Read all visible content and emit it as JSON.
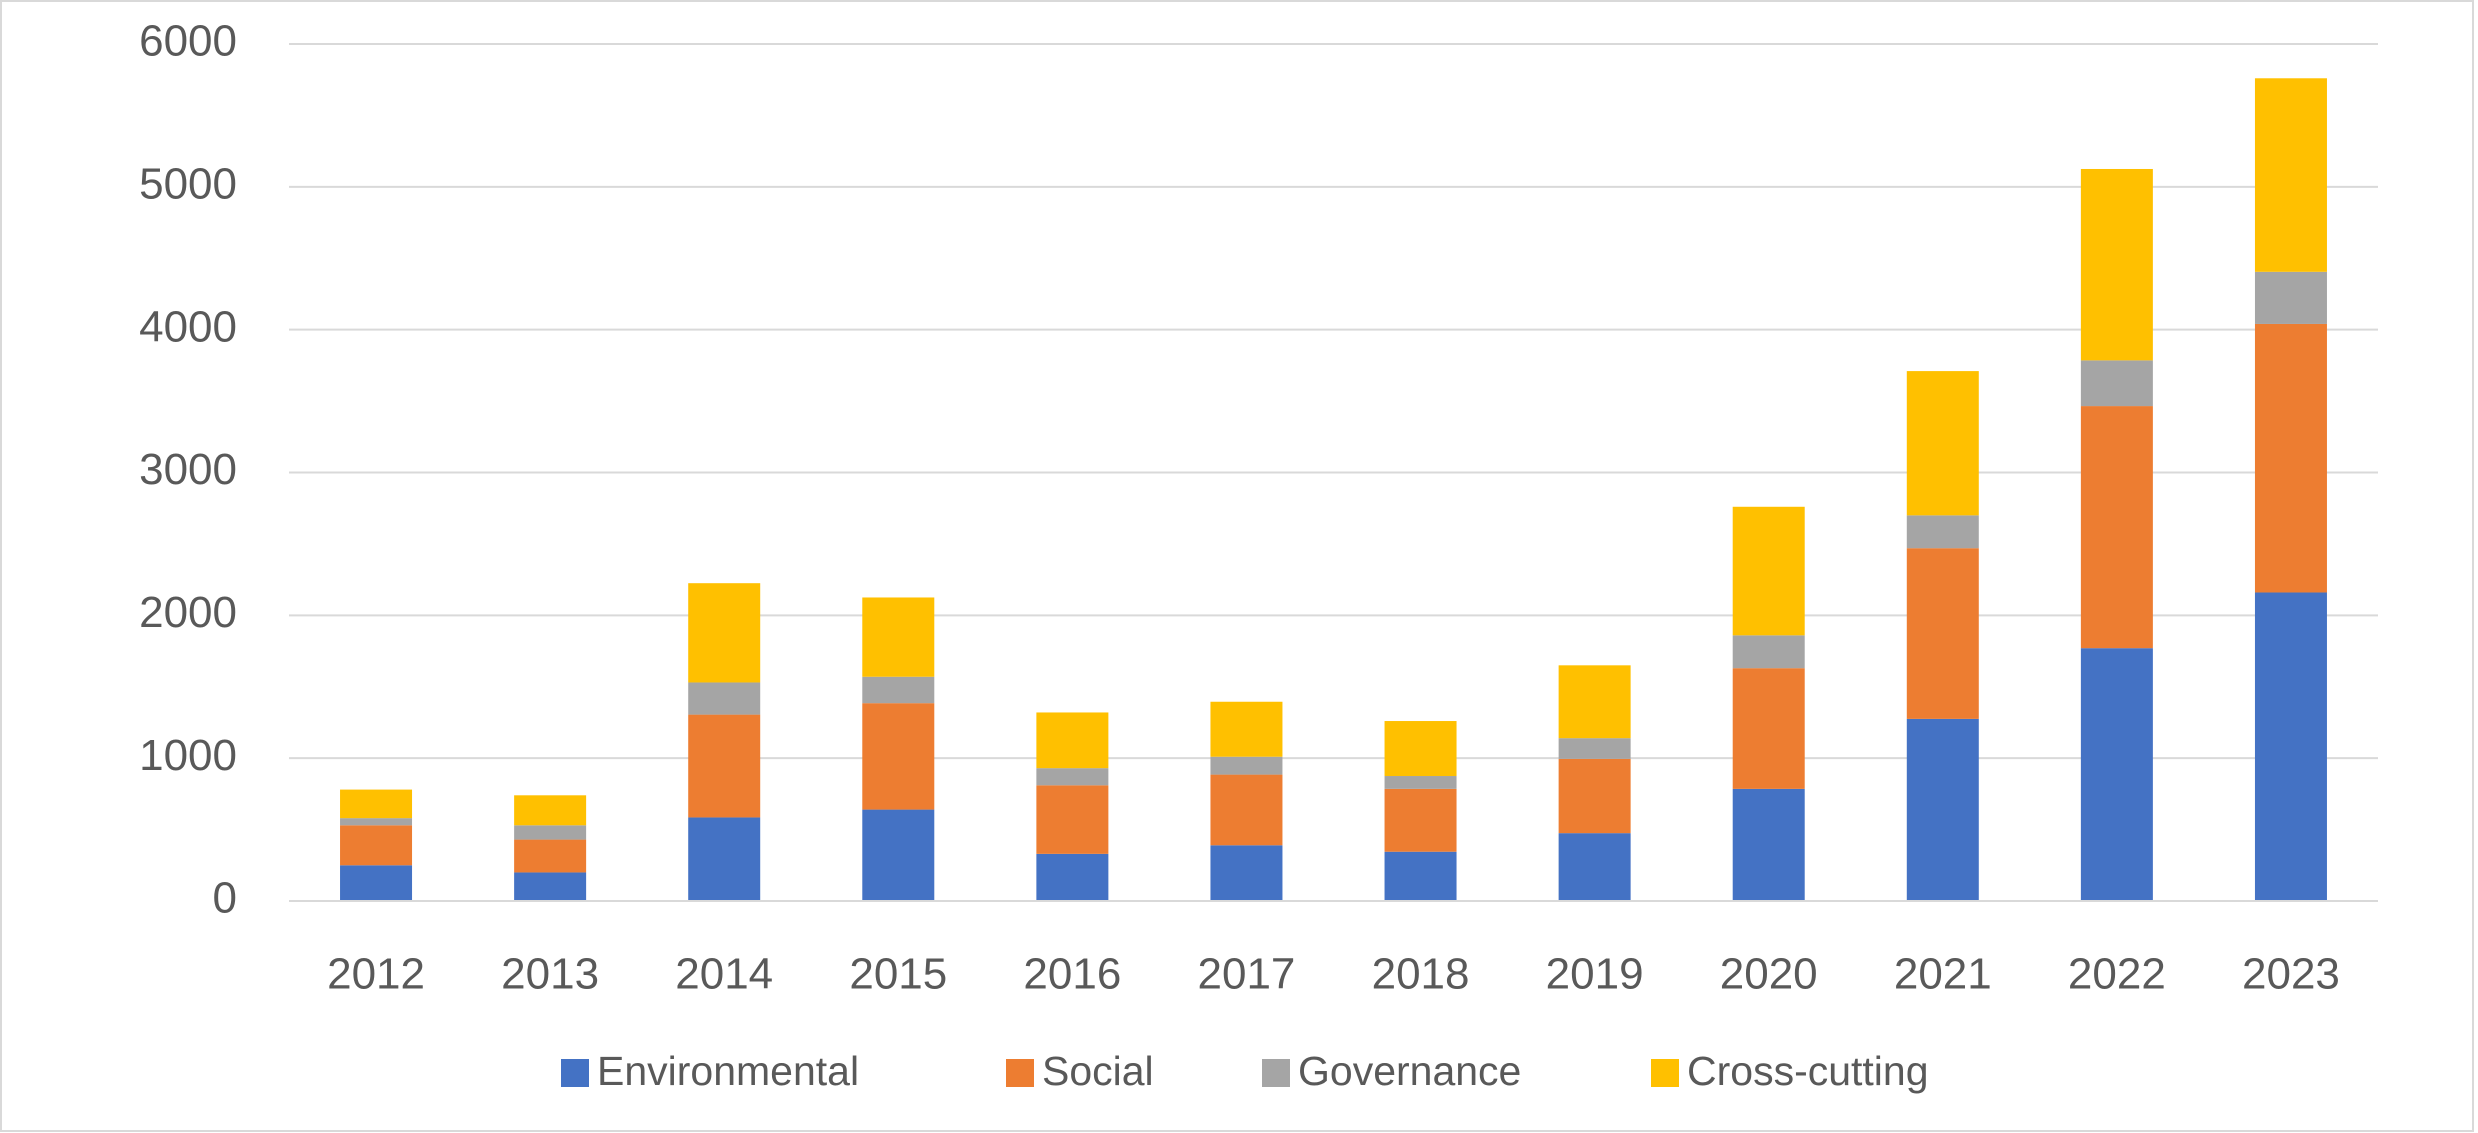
{
  "chart_data": {
    "type": "bar",
    "stacked": true,
    "categories": [
      "2012",
      "2013",
      "2014",
      "2015",
      "2016",
      "2017",
      "2018",
      "2019",
      "2020",
      "2021",
      "2022",
      "2023"
    ],
    "series": [
      {
        "name": "Environmental",
        "color": "#4472c4",
        "values": [
          250,
          200,
          585,
          640,
          330,
          390,
          345,
          475,
          785,
          1275,
          1770,
          2160
        ]
      },
      {
        "name": "Social",
        "color": "#ed7d31",
        "values": [
          280,
          230,
          720,
          745,
          480,
          495,
          440,
          520,
          845,
          1195,
          1695,
          1880
        ]
      },
      {
        "name": "Governance",
        "color": "#a5a5a5",
        "values": [
          50,
          100,
          225,
          185,
          120,
          125,
          90,
          145,
          230,
          230,
          320,
          365
        ]
      },
      {
        "name": "Cross-cutting",
        "color": "#ffc000",
        "values": [
          200,
          210,
          695,
          555,
          390,
          385,
          385,
          510,
          900,
          1010,
          1340,
          1355
        ]
      }
    ],
    "ylim": [
      0,
      6000
    ],
    "yticks": [
      0,
      1000,
      2000,
      3000,
      4000,
      5000,
      6000
    ],
    "grid": true,
    "legend": "bottom"
  }
}
